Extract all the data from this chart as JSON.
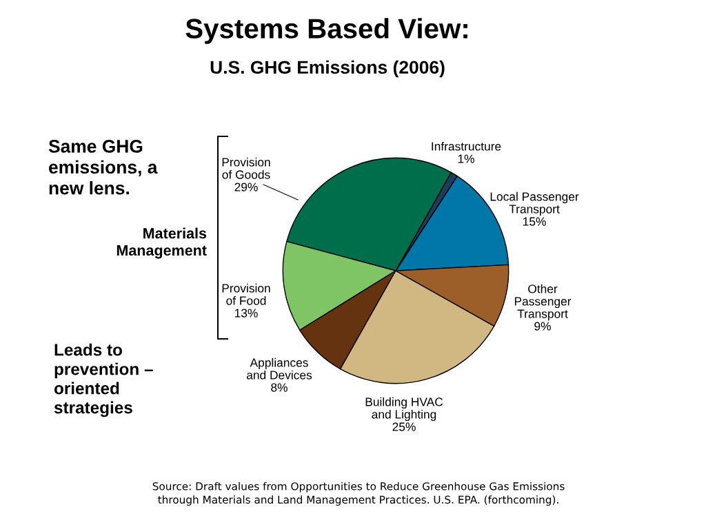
{
  "chart_data": {
    "type": "pie",
    "title": "Systems Based View:",
    "subtitle": "U.S. GHG Emissions (2006)",
    "categories": [
      "Local Passenger\nTransport",
      "Infrastructure",
      "Provision\nof Goods",
      "Provision\nof Food",
      "Appliances\nand Devices",
      "Building HVAC\nand Lighting",
      "Other\nPassenger\nTransport"
    ],
    "values": [
      15,
      1,
      29,
      13,
      8,
      25,
      9
    ],
    "value_labels": [
      "15%",
      "1%",
      "29%",
      "13%",
      "8%",
      "25%",
      "9%"
    ],
    "colors": [
      "#0077a8",
      "#1a3f5c",
      "#006e4a",
      "#80c565",
      "#663311",
      "#d1b883",
      "#9c5f2a"
    ],
    "annotations": [
      "Same GHG\nemissions, a\nnew lens.",
      "Materials\nManagement",
      "Leads to\nprevention –\noriented\nstrategies",
      "Source: Draft values from Opportunities to Reduce Greenhouse Gas Emissions\nthrough Materials and Land Management Practices. U.S. EPA. (forthcoming)."
    ]
  }
}
